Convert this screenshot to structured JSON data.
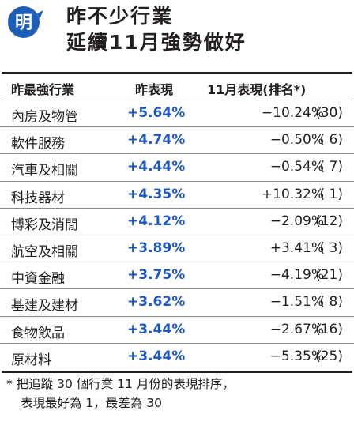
{
  "header": {
    "badge_char": "明",
    "title_line1": "昨不少行業",
    "title_line2": "延續11月強勢做好"
  },
  "colors": {
    "badge_blue": "#1d5fb8",
    "value_blue": "#1f57c2"
  },
  "table": {
    "columns": [
      "昨最強行業",
      "昨表現",
      "11月表現(排名*)"
    ],
    "rows": [
      {
        "sector": "內房及物管",
        "yesterday": "+5.64%",
        "november": "−10.24%",
        "rank": "(30)"
      },
      {
        "sector": "軟件服務",
        "yesterday": "+4.74%",
        "november": "−0.50%",
        "rank": "( 6)"
      },
      {
        "sector": "汽車及相關",
        "yesterday": "+4.44%",
        "november": "−0.54%",
        "rank": "( 7)"
      },
      {
        "sector": "科技器材",
        "yesterday": "+4.35%",
        "november": "+10.32%",
        "rank": "( 1)"
      },
      {
        "sector": "博彩及消閒",
        "yesterday": "+4.12%",
        "november": "−2.09%",
        "rank": "(12)"
      },
      {
        "sector": "航空及相關",
        "yesterday": "+3.89%",
        "november": "+3.41%",
        "rank": "( 3)"
      },
      {
        "sector": "中資金融",
        "yesterday": "+3.75%",
        "november": "−4.19%",
        "rank": "(21)"
      },
      {
        "sector": "基建及建材",
        "yesterday": "+3.62%",
        "november": "−1.51%",
        "rank": "( 8)"
      },
      {
        "sector": "食物飲品",
        "yesterday": "+3.44%",
        "november": "−2.67%",
        "rank": "(16)"
      },
      {
        "sector": "原材料",
        "yesterday": "+3.44%",
        "november": "−5.35%",
        "rank": "(25)"
      }
    ]
  },
  "footnote": {
    "line1": "* 把追蹤 30 個行業 11 月份的表現排序，",
    "line2": "表現最好為 1，最差為 30"
  }
}
